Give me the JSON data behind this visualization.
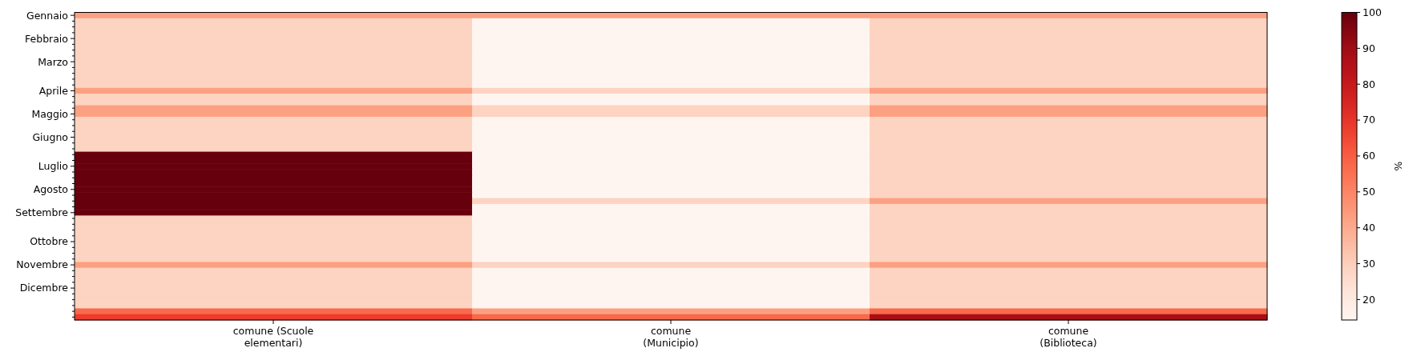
{
  "chart_data": {
    "type": "heatmap",
    "categories": [
      "comune (Scuole\nelementari)",
      "comune\n(Municipio)",
      "comune\n(Biblioteca)"
    ],
    "y_categories": [
      "Gennaio",
      null,
      null,
      null,
      "Febbraio",
      null,
      null,
      null,
      "Marzo",
      null,
      null,
      null,
      null,
      "Aprile",
      null,
      null,
      null,
      "Maggio",
      null,
      null,
      null,
      "Giugno",
      null,
      null,
      null,
      null,
      "Luglio",
      null,
      null,
      null,
      "Agosto",
      null,
      null,
      null,
      "Settembre",
      null,
      null,
      null,
      null,
      "Ottobre",
      null,
      null,
      null,
      "Novembre",
      null,
      null,
      null,
      "Dicembre",
      null,
      null,
      null,
      null,
      null
    ],
    "cells": [
      [
        42.9,
        42.9,
        42.9
      ],
      [
        28.6,
        14.3,
        28.6
      ],
      [
        28.6,
        14.3,
        28.6
      ],
      [
        28.6,
        14.3,
        28.6
      ],
      [
        28.6,
        14.3,
        28.6
      ],
      [
        28.6,
        14.3,
        28.6
      ],
      [
        28.6,
        14.3,
        28.6
      ],
      [
        28.6,
        14.3,
        28.6
      ],
      [
        28.6,
        14.3,
        28.6
      ],
      [
        28.6,
        14.3,
        28.6
      ],
      [
        28.6,
        14.3,
        28.6
      ],
      [
        28.6,
        14.3,
        28.6
      ],
      [
        28.6,
        14.3,
        28.6
      ],
      [
        42.9,
        28.6,
        42.9
      ],
      [
        28.6,
        14.3,
        28.6
      ],
      [
        28.6,
        14.3,
        28.6
      ],
      [
        42.9,
        28.6,
        42.9
      ],
      [
        42.9,
        28.6,
        42.9
      ],
      [
        28.6,
        14.3,
        28.6
      ],
      [
        28.6,
        14.3,
        28.6
      ],
      [
        28.6,
        14.3,
        28.6
      ],
      [
        28.6,
        14.3,
        28.6
      ],
      [
        28.6,
        14.3,
        28.6
      ],
      [
        28.6,
        14.3,
        28.6
      ],
      [
        100,
        14.3,
        28.6
      ],
      [
        100,
        14.3,
        28.6
      ],
      [
        100,
        14.3,
        28.6
      ],
      [
        100,
        14.3,
        28.6
      ],
      [
        100,
        14.3,
        28.6
      ],
      [
        100,
        14.3,
        28.6
      ],
      [
        100,
        14.3,
        28.6
      ],
      [
        100,
        14.3,
        28.6
      ],
      [
        100,
        28.6,
        42.9
      ],
      [
        100,
        14.3,
        28.6
      ],
      [
        100,
        14.3,
        28.6
      ],
      [
        28.6,
        14.3,
        28.6
      ],
      [
        28.6,
        14.3,
        28.6
      ],
      [
        28.6,
        14.3,
        28.6
      ],
      [
        28.6,
        14.3,
        28.6
      ],
      [
        28.6,
        14.3,
        28.6
      ],
      [
        28.6,
        14.3,
        28.6
      ],
      [
        28.6,
        14.3,
        28.6
      ],
      [
        28.6,
        14.3,
        28.6
      ],
      [
        42.9,
        28.6,
        42.9
      ],
      [
        28.6,
        14.3,
        28.6
      ],
      [
        28.6,
        14.3,
        28.6
      ],
      [
        28.6,
        14.3,
        28.6
      ],
      [
        28.6,
        14.3,
        28.6
      ],
      [
        28.6,
        14.3,
        28.6
      ],
      [
        28.6,
        14.3,
        28.6
      ],
      [
        28.6,
        14.3,
        28.6
      ],
      [
        57.1,
        42.9,
        57.1
      ],
      [
        68,
        57.1,
        88
      ]
    ],
    "clim": [
      14.3,
      100
    ],
    "cticks": [
      20,
      30,
      40,
      50,
      60,
      70,
      80,
      90,
      100
    ],
    "clabel": "%"
  }
}
